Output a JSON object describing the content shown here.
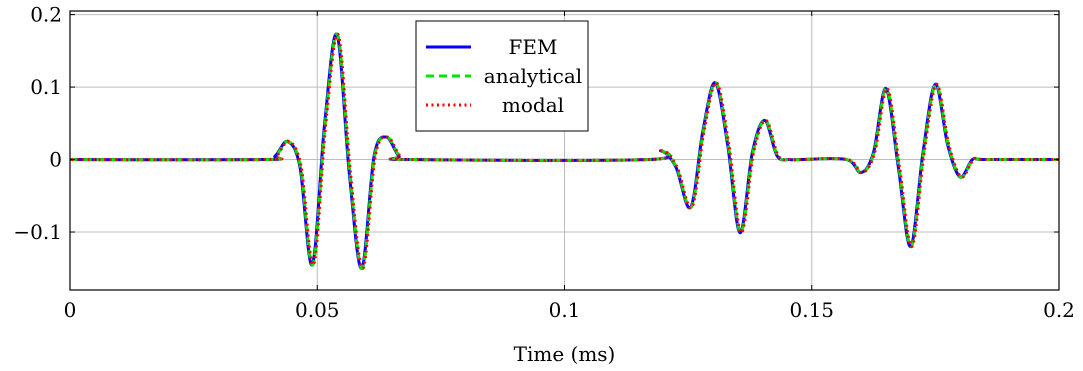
{
  "chart_data": {
    "type": "line",
    "xlabel": "Time (ms)",
    "ylabel": "",
    "xlim": [
      0,
      0.2
    ],
    "ylim": [
      -0.18,
      0.205
    ],
    "x_ticks": [
      0,
      0.05,
      0.1,
      0.15,
      0.2
    ],
    "x_tick_labels": [
      "0",
      "0.05",
      "0.1",
      "0.15",
      "0.2"
    ],
    "y_ticks": [
      -0.1,
      0,
      0.1,
      0.2
    ],
    "y_tick_labels": [
      "−0.1",
      "0",
      "0.1",
      "0.2"
    ],
    "grid": true,
    "legend_position": "top-center",
    "series": [
      {
        "name": "FEM",
        "color": "#0000ff",
        "style": "solid"
      },
      {
        "name": "analytical",
        "color": "#00e600",
        "style": "dashed"
      },
      {
        "name": "modal",
        "color": "#ff0000",
        "style": "dotted"
      }
    ],
    "x": [
      0,
      0.039,
      0.0415,
      0.044,
      0.0465,
      0.049,
      0.0515,
      0.054,
      0.0565,
      0.059,
      0.0615,
      0.064,
      0.0665,
      0.069,
      0.117,
      0.1195,
      0.1225,
      0.1255,
      0.128,
      0.1305,
      0.133,
      0.1355,
      0.138,
      0.1405,
      0.143,
      0.1455,
      0.148,
      0.157,
      0.16,
      0.1625,
      0.165,
      0.1675,
      0.17,
      0.1725,
      0.175,
      0.1775,
      0.18,
      0.1825,
      0.185,
      0.2
    ],
    "y": [
      0,
      0,
      0.005,
      0.025,
      -0.01,
      -0.145,
      0.05,
      0.172,
      -0.02,
      -0.15,
      0.005,
      0.031,
      0.005,
      0,
      0,
      0.012,
      -0.01,
      -0.066,
      0.04,
      0.106,
      0.02,
      -0.101,
      0.01,
      0.054,
      0.005,
      0,
      0,
      0,
      -0.018,
      0.01,
      0.098,
      -0.01,
      -0.12,
      0.01,
      0.104,
      0.02,
      -0.024,
      0,
      0,
      0
    ]
  }
}
